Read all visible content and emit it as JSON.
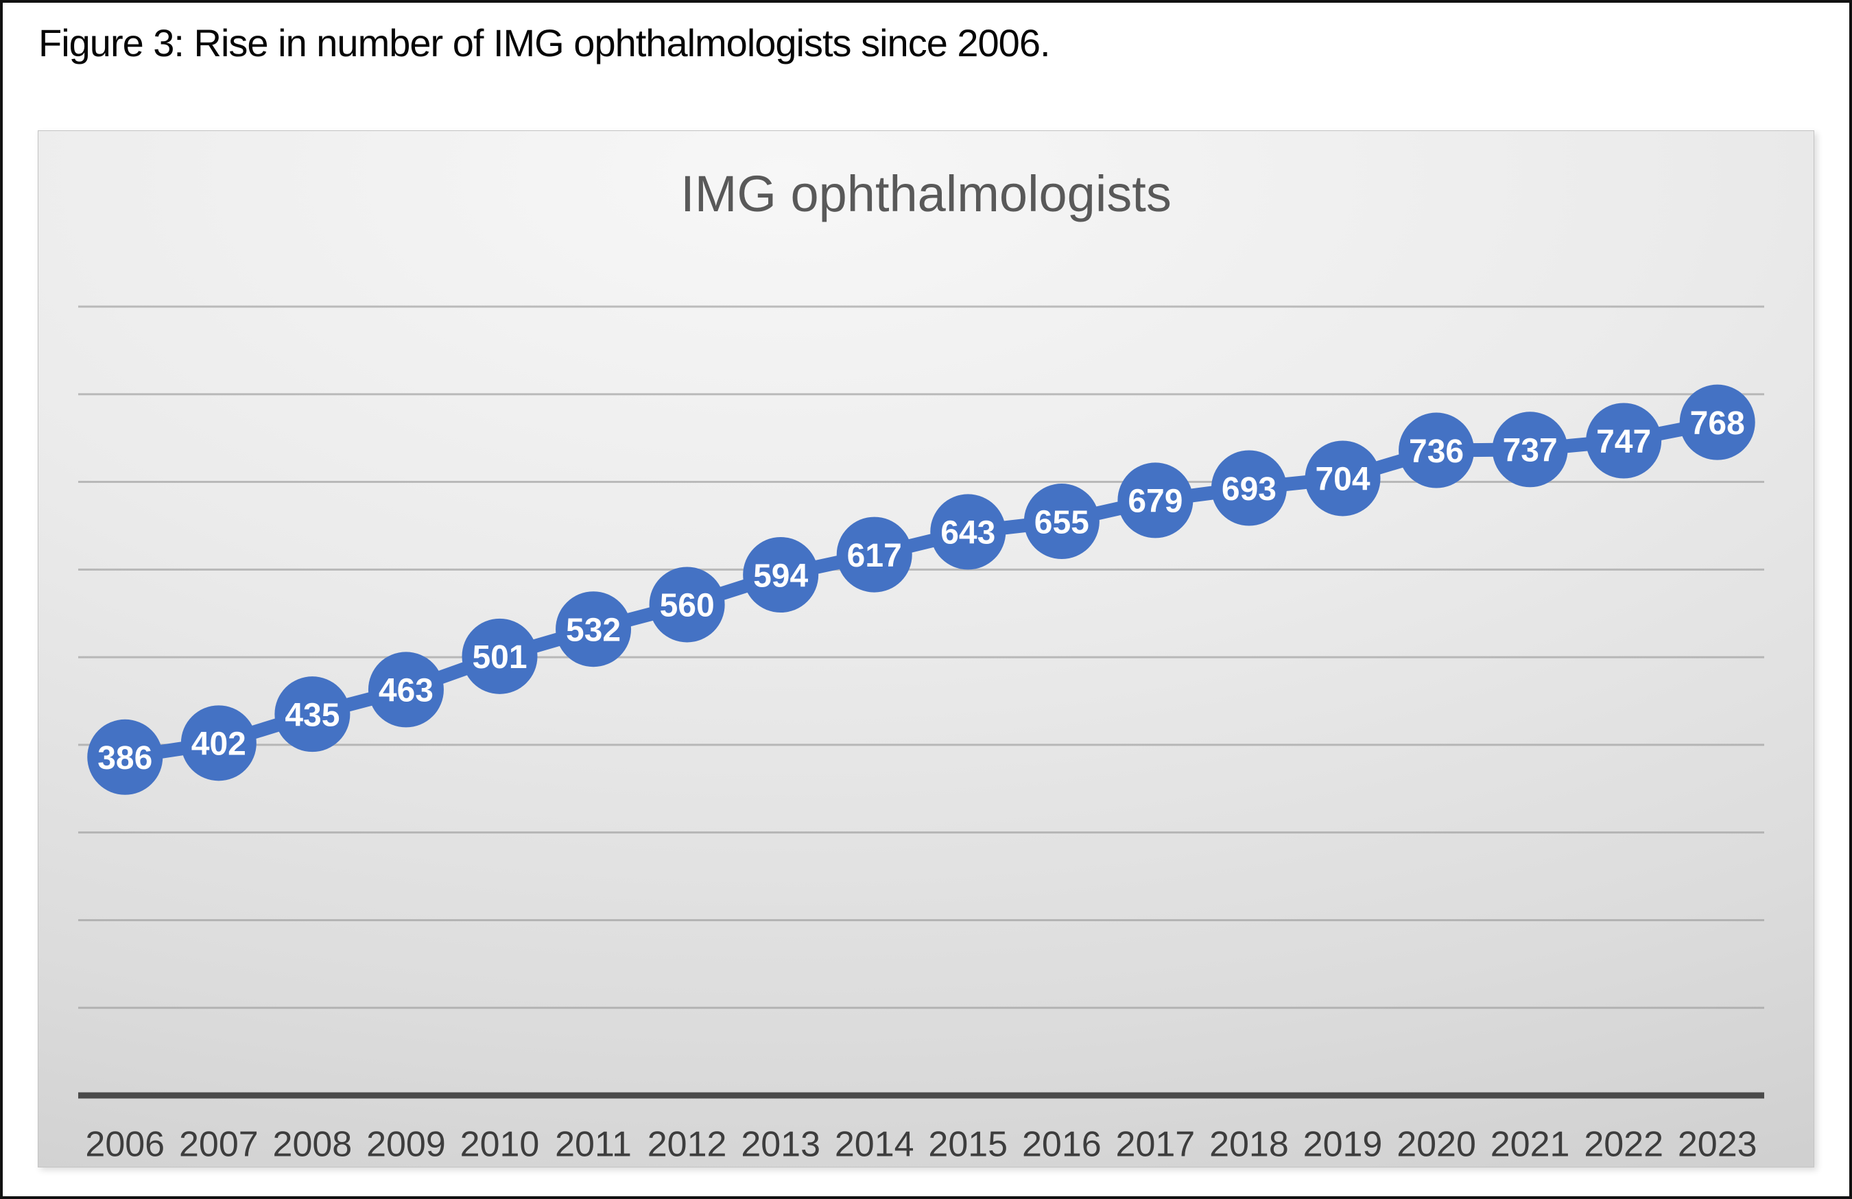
{
  "figure": {
    "caption": "Figure 3: Rise in number of IMG ophthalmologists since 2006."
  },
  "chart_data": {
    "type": "line",
    "title": "IMG ophthalmologists",
    "categories": [
      "2006",
      "2007",
      "2008",
      "2009",
      "2010",
      "2011",
      "2012",
      "2013",
      "2014",
      "2015",
      "2016",
      "2017",
      "2018",
      "2019",
      "2020",
      "2021",
      "2022",
      "2023"
    ],
    "series": [
      {
        "name": "IMG ophthalmologists",
        "values": [
          386,
          402,
          435,
          463,
          501,
          532,
          560,
          594,
          617,
          643,
          655,
          679,
          693,
          704,
          736,
          737,
          747,
          768
        ]
      }
    ],
    "data_labels": "on",
    "marker": "circle",
    "xlabel": "",
    "ylabel": "",
    "ylim": [
      0,
      900
    ],
    "gridline_interval": 100,
    "grid": true,
    "legend": "none",
    "y_tick_labels": "hidden",
    "colors": {
      "series": "#4472C4",
      "data_label_text": "#FFFFFF",
      "chart_title": "#595959",
      "axis_line": "#4A4A4A",
      "gridline": "#9E9E9E",
      "tick_label": "#3D3D3D",
      "caption_text": "#060606",
      "plot_bg_light": "#F7F7F7",
      "plot_bg_dark": "#CCCCCC"
    }
  }
}
